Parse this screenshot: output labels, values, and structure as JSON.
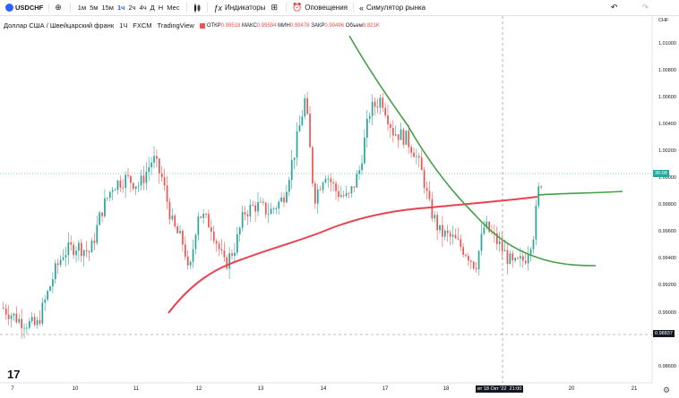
{
  "toolbar": {
    "symbol": "USDCHF",
    "timeframes": [
      "1м",
      "5м",
      "15м",
      "1ч",
      "2ч",
      "4ч",
      "Д",
      "Н",
      "Мес"
    ],
    "active_timeframe": "1ч",
    "indicators": "Индикаторы",
    "alerts": "Оповещения",
    "replay": "Симулятор рынка"
  },
  "legend": {
    "title": "Доллар США / Швейцарский франк",
    "interval": "1Ч",
    "exchange": "FXCM",
    "source": "TradingView",
    "open_label": "ОТКР",
    "open": "0.99518",
    "high_label": "МАКС",
    "high": "0.99594",
    "low_label": "МИН",
    "low": "0.99478",
    "close_label": "ЗАКР",
    "close": "0.99496",
    "volume_label": "Объем",
    "volume": "9.821K"
  },
  "price_axis": {
    "currency": "CHF",
    "labels": [
      "1.01000",
      "1.00800",
      "1.00600",
      "1.00400",
      "1.00200",
      "1.00000",
      "0.99800",
      "0.99600",
      "0.99400",
      "0.99200",
      "0.99000",
      "0.98600"
    ],
    "current_price_badge": "36:08",
    "cursor_price": "0.98837"
  },
  "time_axis": {
    "labels": [
      "7",
      "10",
      "11",
      "12",
      "13",
      "14",
      "17",
      "18",
      "20",
      "21"
    ],
    "cursor_time": "вт 18 Окт '22",
    "cursor_hour": "21:00"
  },
  "colors": {
    "up": "#26a69a",
    "down": "#ef5350",
    "ma_red": "#e8434f",
    "ma_green": "#43a047",
    "accent": "#2962ff"
  },
  "icons": {
    "add": "plus-circle-icon",
    "candles": "candles-icon",
    "indicators": "fx-icon",
    "alert": "alarm-clock-icon",
    "replay": "rewind-icon",
    "undo": "undo-icon",
    "redo": "redo-icon",
    "logo": "tradingview-logo",
    "settings": "gear-icon"
  }
}
